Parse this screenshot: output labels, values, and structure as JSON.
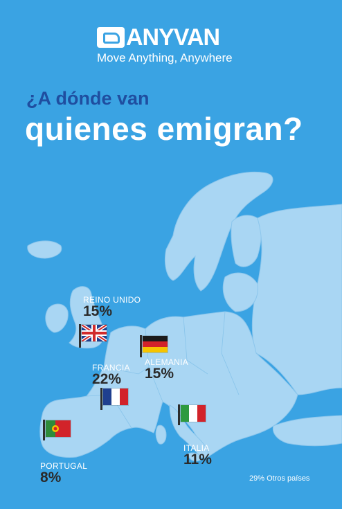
{
  "brand": {
    "name": "ANYVAN",
    "tagline": "Move Anything, Anywhere",
    "logo_icon": "van-icon"
  },
  "headline": {
    "line1": "¿A dónde van",
    "line2": "quienes emigran?"
  },
  "colors": {
    "background": "#3aa3e3",
    "land": "#a9d6f3",
    "title_accent": "#1f4ea0"
  },
  "countries": [
    {
      "name": "REINO UNIDO",
      "percent": "15%",
      "flag": "uk-flag-icon"
    },
    {
      "name": "ALEMANIA",
      "percent": "15%",
      "flag": "germany-flag-icon"
    },
    {
      "name": "FRANCIA",
      "percent": "22%",
      "flag": "france-flag-icon"
    },
    {
      "name": "ITALIA",
      "percent": "11%",
      "flag": "italy-flag-icon"
    },
    {
      "name": "PORTUGAL",
      "percent": "8%",
      "flag": "portugal-flag-icon"
    }
  ],
  "others": "29% Otros países"
}
